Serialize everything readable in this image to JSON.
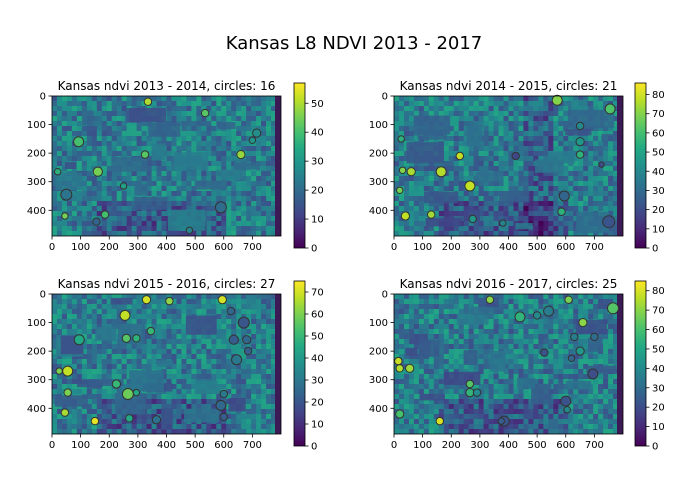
{
  "figure_title": "Kansas L8 NDVI 2013 - 2017",
  "colors": {
    "viridis": [
      "#440154",
      "#482475",
      "#414487",
      "#355f8d",
      "#2a788e",
      "#21918c",
      "#22a884",
      "#44bf70",
      "#7ad151",
      "#bddf26",
      "#fde725"
    ],
    "circle_edge": "#333333",
    "nodata_strip": "#3b1a55"
  },
  "chart_data": [
    {
      "type": "heatmap",
      "title": "Kansas ndvi 2013 - 2014, circles: 16",
      "xlim": [
        0,
        800
      ],
      "ylim": [
        490,
        0
      ],
      "xticks": [
        0,
        100,
        200,
        300,
        400,
        500,
        600,
        700
      ],
      "yticks": [
        0,
        100,
        200,
        300,
        400
      ],
      "colorbar": {
        "min": 0,
        "max": 57,
        "ticks": [
          0,
          10,
          20,
          30,
          40,
          50
        ]
      },
      "circles": [
        {
          "x": 335,
          "y": 20,
          "r": 8,
          "v": 50
        },
        {
          "x": 535,
          "y": 60,
          "r": 8,
          "v": 42
        },
        {
          "x": 93,
          "y": 160,
          "r": 11,
          "v": 40
        },
        {
          "x": 325,
          "y": 205,
          "r": 8,
          "v": 42
        },
        {
          "x": 715,
          "y": 130,
          "r": 9,
          "v": 28
        },
        {
          "x": 700,
          "y": 155,
          "r": 7,
          "v": 30
        },
        {
          "x": 660,
          "y": 205,
          "r": 9,
          "v": 48
        },
        {
          "x": 20,
          "y": 265,
          "r": 7,
          "v": 36
        },
        {
          "x": 160,
          "y": 265,
          "r": 10,
          "v": 45
        },
        {
          "x": 50,
          "y": 345,
          "r": 12,
          "v": 22
        },
        {
          "x": 45,
          "y": 420,
          "r": 7,
          "v": 45
        },
        {
          "x": 185,
          "y": 415,
          "r": 8,
          "v": 40
        },
        {
          "x": 155,
          "y": 440,
          "r": 8,
          "v": 18
        },
        {
          "x": 250,
          "y": 315,
          "r": 7,
          "v": 32
        },
        {
          "x": 590,
          "y": 390,
          "r": 12,
          "v": 20
        },
        {
          "x": 480,
          "y": 470,
          "r": 7,
          "v": 25
        }
      ]
    },
    {
      "type": "heatmap",
      "title": "Kansas ndvi 2014 - 2015, circles: 21",
      "xlim": [
        0,
        800
      ],
      "ylim": [
        490,
        0
      ],
      "xticks": [
        0,
        100,
        200,
        300,
        400,
        500,
        600,
        700
      ],
      "yticks": [
        0,
        100,
        200,
        300,
        400
      ],
      "colorbar": {
        "min": 0,
        "max": 86,
        "ticks": [
          0,
          10,
          20,
          30,
          40,
          50,
          60,
          70,
          80
        ]
      },
      "circles": [
        {
          "x": 570,
          "y": 15,
          "r": 11,
          "v": 70
        },
        {
          "x": 755,
          "y": 45,
          "r": 11,
          "v": 62
        },
        {
          "x": 650,
          "y": 105,
          "r": 8,
          "v": 40
        },
        {
          "x": 650,
          "y": 160,
          "r": 9,
          "v": 45
        },
        {
          "x": 650,
          "y": 205,
          "r": 8,
          "v": 55
        },
        {
          "x": 725,
          "y": 240,
          "r": 6,
          "v": 20
        },
        {
          "x": 425,
          "y": 210,
          "r": 8,
          "v": 18
        },
        {
          "x": 230,
          "y": 210,
          "r": 8,
          "v": 78
        },
        {
          "x": 25,
          "y": 150,
          "r": 7,
          "v": 55
        },
        {
          "x": 30,
          "y": 260,
          "r": 7,
          "v": 70
        },
        {
          "x": 60,
          "y": 265,
          "r": 9,
          "v": 75
        },
        {
          "x": 165,
          "y": 265,
          "r": 11,
          "v": 76
        },
        {
          "x": 265,
          "y": 315,
          "r": 11,
          "v": 78
        },
        {
          "x": 20,
          "y": 330,
          "r": 7,
          "v": 68
        },
        {
          "x": 40,
          "y": 420,
          "r": 9,
          "v": 78
        },
        {
          "x": 130,
          "y": 415,
          "r": 8,
          "v": 74
        },
        {
          "x": 275,
          "y": 430,
          "r": 8,
          "v": 45
        },
        {
          "x": 380,
          "y": 445,
          "r": 7,
          "v": 38
        },
        {
          "x": 595,
          "y": 350,
          "r": 11,
          "v": 28
        },
        {
          "x": 585,
          "y": 405,
          "r": 8,
          "v": 55
        },
        {
          "x": 750,
          "y": 440,
          "r": 13,
          "v": 22
        }
      ]
    },
    {
      "type": "heatmap",
      "title": "Kansas ndvi 2015 - 2016, circles: 27",
      "xlim": [
        0,
        800
      ],
      "ylim": [
        490,
        0
      ],
      "xticks": [
        0,
        100,
        200,
        300,
        400,
        500,
        600,
        700
      ],
      "yticks": [
        0,
        100,
        200,
        300,
        400
      ],
      "colorbar": {
        "min": 0,
        "max": 75,
        "ticks": [
          0,
          10,
          20,
          30,
          40,
          50,
          60,
          70
        ]
      },
      "circles": [
        {
          "x": 330,
          "y": 20,
          "r": 9,
          "v": 70
        },
        {
          "x": 410,
          "y": 25,
          "r": 8,
          "v": 62
        },
        {
          "x": 595,
          "y": 20,
          "r": 9,
          "v": 70
        },
        {
          "x": 255,
          "y": 75,
          "r": 11,
          "v": 68
        },
        {
          "x": 345,
          "y": 130,
          "r": 8,
          "v": 50
        },
        {
          "x": 260,
          "y": 155,
          "r": 9,
          "v": 55
        },
        {
          "x": 295,
          "y": 155,
          "r": 8,
          "v": 48
        },
        {
          "x": 95,
          "y": 160,
          "r": 11,
          "v": 45
        },
        {
          "x": 625,
          "y": 60,
          "r": 8,
          "v": 25
        },
        {
          "x": 670,
          "y": 100,
          "r": 12,
          "v": 20
        },
        {
          "x": 635,
          "y": 160,
          "r": 10,
          "v": 22
        },
        {
          "x": 680,
          "y": 160,
          "r": 9,
          "v": 25
        },
        {
          "x": 645,
          "y": 230,
          "r": 11,
          "v": 30
        },
        {
          "x": 685,
          "y": 200,
          "r": 8,
          "v": 22
        },
        {
          "x": 25,
          "y": 270,
          "r": 7,
          "v": 60
        },
        {
          "x": 55,
          "y": 270,
          "r": 11,
          "v": 68
        },
        {
          "x": 55,
          "y": 345,
          "r": 8,
          "v": 60
        },
        {
          "x": 45,
          "y": 415,
          "r": 8,
          "v": 65
        },
        {
          "x": 150,
          "y": 445,
          "r": 8,
          "v": 72
        },
        {
          "x": 225,
          "y": 315,
          "r": 9,
          "v": 50
        },
        {
          "x": 265,
          "y": 350,
          "r": 12,
          "v": 58
        },
        {
          "x": 295,
          "y": 345,
          "r": 7,
          "v": 45
        },
        {
          "x": 270,
          "y": 435,
          "r": 8,
          "v": 45
        },
        {
          "x": 365,
          "y": 440,
          "r": 9,
          "v": 28
        },
        {
          "x": 600,
          "y": 350,
          "r": 8,
          "v": 30
        },
        {
          "x": 590,
          "y": 390,
          "r": 11,
          "v": 25
        },
        {
          "x": 600,
          "y": 430,
          "r": 8,
          "v": 22
        }
      ]
    },
    {
      "type": "heatmap",
      "title": "Kansas ndvi 2016 - 2017, circles: 25",
      "xlim": [
        0,
        800
      ],
      "ylim": [
        490,
        0
      ],
      "xticks": [
        0,
        100,
        200,
        300,
        400,
        500,
        600,
        700
      ],
      "yticks": [
        0,
        100,
        200,
        300,
        400
      ],
      "colorbar": {
        "min": 0,
        "max": 85,
        "ticks": [
          0,
          10,
          20,
          30,
          40,
          50,
          60,
          70,
          80
        ]
      },
      "circles": [
        {
          "x": 335,
          "y": 20,
          "r": 8,
          "v": 70
        },
        {
          "x": 610,
          "y": 20,
          "r": 8,
          "v": 68
        },
        {
          "x": 765,
          "y": 50,
          "r": 12,
          "v": 62
        },
        {
          "x": 540,
          "y": 60,
          "r": 11,
          "v": 35
        },
        {
          "x": 500,
          "y": 75,
          "r": 8,
          "v": 40
        },
        {
          "x": 440,
          "y": 80,
          "r": 11,
          "v": 55
        },
        {
          "x": 660,
          "y": 100,
          "r": 9,
          "v": 70
        },
        {
          "x": 630,
          "y": 150,
          "r": 8,
          "v": 35
        },
        {
          "x": 700,
          "y": 150,
          "r": 8,
          "v": 30
        },
        {
          "x": 650,
          "y": 200,
          "r": 9,
          "v": 45
        },
        {
          "x": 620,
          "y": 225,
          "r": 7,
          "v": 28
        },
        {
          "x": 525,
          "y": 205,
          "r": 8,
          "v": 22
        },
        {
          "x": 15,
          "y": 235,
          "r": 8,
          "v": 78
        },
        {
          "x": 20,
          "y": 260,
          "r": 8,
          "v": 75
        },
        {
          "x": 55,
          "y": 260,
          "r": 9,
          "v": 72
        },
        {
          "x": 265,
          "y": 315,
          "r": 8,
          "v": 62
        },
        {
          "x": 265,
          "y": 345,
          "r": 9,
          "v": 55
        },
        {
          "x": 290,
          "y": 345,
          "r": 8,
          "v": 40
        },
        {
          "x": 695,
          "y": 280,
          "r": 11,
          "v": 20
        },
        {
          "x": 600,
          "y": 375,
          "r": 11,
          "v": 22
        },
        {
          "x": 605,
          "y": 405,
          "r": 7,
          "v": 40
        },
        {
          "x": 385,
          "y": 445,
          "r": 11,
          "v": 22
        },
        {
          "x": 375,
          "y": 445,
          "r": 7,
          "v": 25
        },
        {
          "x": 160,
          "y": 445,
          "r": 8,
          "v": 80
        },
        {
          "x": 20,
          "y": 420,
          "r": 9,
          "v": 60
        }
      ]
    }
  ]
}
